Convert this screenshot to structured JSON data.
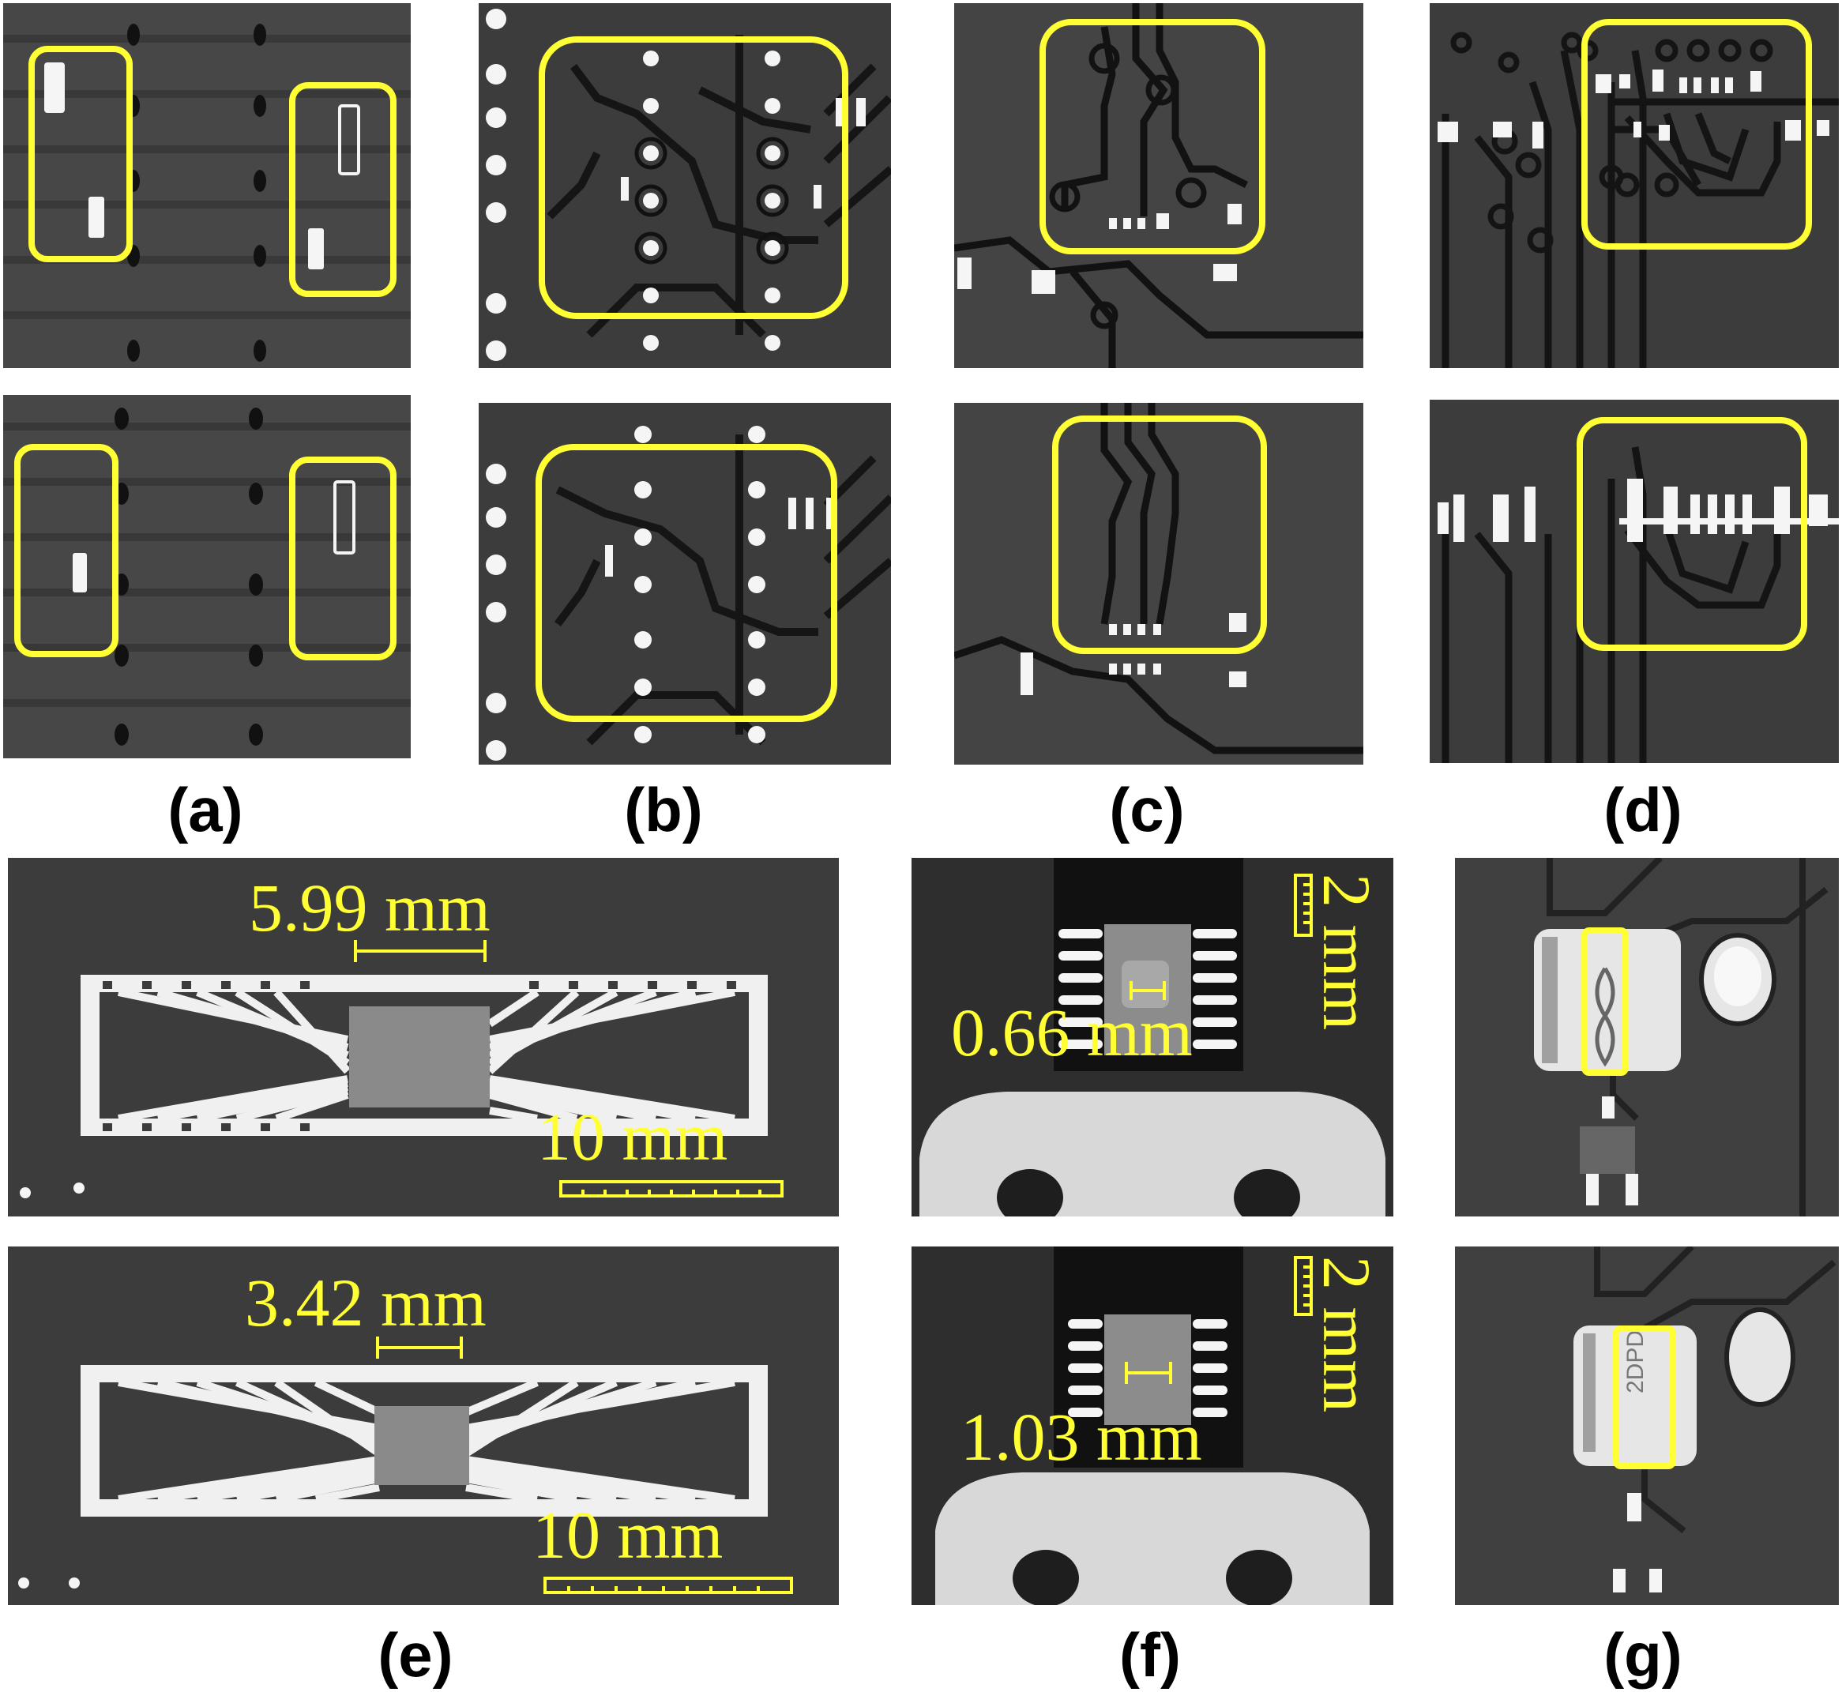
{
  "figure": {
    "labels": {
      "a": "(a)",
      "b": "(b)",
      "c": "(c)",
      "d": "(d)",
      "e": "(e)",
      "f": "(f)",
      "g": "(g)"
    },
    "annotations": {
      "e_top_measure": "5.99 mm",
      "e_top_scale": "10 mm",
      "e_bottom_measure": "3.42 mm",
      "e_bottom_scale": "10 mm",
      "f_top_measure": "0.66 mm",
      "f_top_scale": "2 mm",
      "f_bottom_measure": "1.03 mm",
      "f_bottom_scale": "2 mm",
      "g_bottom_marking": "2DPD"
    },
    "colors": {
      "highlight": "#ffff33",
      "background": "#3c3c3c",
      "metal": "#f2f2f2",
      "trace": "#1a1a1a"
    }
  }
}
